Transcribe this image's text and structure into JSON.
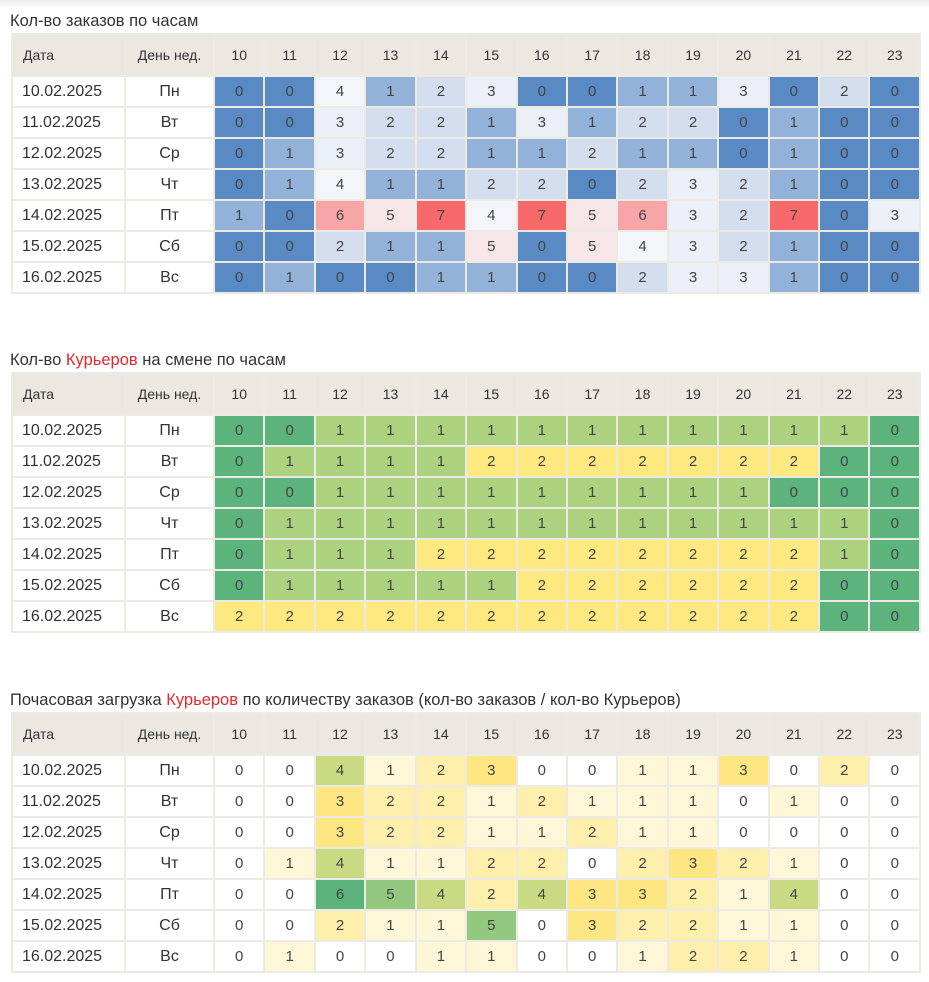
{
  "columns": {
    "date": "Дата",
    "dow": "День нед.",
    "hours": [
      "10",
      "11",
      "12",
      "13",
      "14",
      "15",
      "16",
      "17",
      "18",
      "19",
      "20",
      "21",
      "22",
      "23"
    ]
  },
  "rows": [
    {
      "date": "10.02.2025",
      "dow": "Пн"
    },
    {
      "date": "11.02.2025",
      "dow": "Вт"
    },
    {
      "date": "12.02.2025",
      "dow": "Ср"
    },
    {
      "date": "13.02.2025",
      "dow": "Чт"
    },
    {
      "date": "14.02.2025",
      "dow": "Пт"
    },
    {
      "date": "15.02.2025",
      "dow": "Сб"
    },
    {
      "date": "16.02.2025",
      "dow": "Вс"
    }
  ],
  "tables": [
    {
      "id": "orders",
      "title_parts": [
        {
          "text": "Кол-во заказов по часам",
          "accent": false
        }
      ],
      "palette": "blue-red",
      "values": [
        [
          0,
          0,
          4,
          1,
          2,
          3,
          0,
          0,
          1,
          1,
          3,
          0,
          2,
          0
        ],
        [
          0,
          0,
          3,
          2,
          2,
          1,
          3,
          1,
          2,
          2,
          0,
          1,
          0,
          0
        ],
        [
          0,
          1,
          3,
          2,
          2,
          1,
          1,
          2,
          1,
          1,
          0,
          1,
          0,
          0
        ],
        [
          0,
          1,
          4,
          1,
          1,
          2,
          2,
          0,
          2,
          3,
          2,
          1,
          0,
          0
        ],
        [
          1,
          0,
          6,
          5,
          7,
          4,
          7,
          5,
          6,
          3,
          2,
          7,
          0,
          3
        ],
        [
          0,
          0,
          2,
          1,
          1,
          5,
          0,
          5,
          4,
          3,
          2,
          1,
          0,
          0
        ],
        [
          0,
          1,
          0,
          0,
          1,
          1,
          0,
          0,
          2,
          3,
          3,
          1,
          0,
          0
        ]
      ]
    },
    {
      "id": "couriers",
      "title_parts": [
        {
          "text": "Кол-во ",
          "accent": false
        },
        {
          "text": "Курьеров",
          "accent": true
        },
        {
          "text": " на смене по часам",
          "accent": false
        }
      ],
      "palette": "green-yellow",
      "values": [
        [
          0,
          0,
          1,
          1,
          1,
          1,
          1,
          1,
          1,
          1,
          1,
          1,
          1,
          0
        ],
        [
          0,
          1,
          1,
          1,
          1,
          2,
          2,
          2,
          2,
          2,
          2,
          2,
          0,
          0
        ],
        [
          0,
          0,
          1,
          1,
          1,
          1,
          1,
          1,
          1,
          1,
          1,
          0,
          0,
          0
        ],
        [
          0,
          1,
          1,
          1,
          1,
          1,
          1,
          1,
          1,
          1,
          1,
          1,
          1,
          0
        ],
        [
          0,
          1,
          1,
          1,
          2,
          2,
          2,
          2,
          2,
          2,
          2,
          2,
          1,
          0
        ],
        [
          0,
          1,
          1,
          1,
          1,
          1,
          2,
          2,
          2,
          2,
          2,
          2,
          0,
          0
        ],
        [
          2,
          2,
          2,
          2,
          2,
          2,
          2,
          2,
          2,
          2,
          2,
          2,
          0,
          0
        ]
      ]
    },
    {
      "id": "load",
      "title_parts": [
        {
          "text": "Почасовая загрузка ",
          "accent": false
        },
        {
          "text": "Курьеров",
          "accent": true
        },
        {
          "text": " по количеству заказов (кол-во заказов / кол-во Курьеров)",
          "accent": false
        }
      ],
      "palette": "white-yellow-green",
      "values": [
        [
          0,
          0,
          4,
          1,
          2,
          3,
          0,
          0,
          1,
          1,
          3,
          0,
          2,
          0
        ],
        [
          0,
          0,
          3,
          2,
          2,
          1,
          2,
          1,
          1,
          1,
          0,
          1,
          0,
          0
        ],
        [
          0,
          0,
          3,
          2,
          2,
          1,
          1,
          2,
          1,
          1,
          0,
          0,
          0,
          0
        ],
        [
          0,
          1,
          4,
          1,
          1,
          2,
          2,
          0,
          2,
          3,
          2,
          1,
          0,
          0
        ],
        [
          0,
          0,
          6,
          5,
          4,
          2,
          4,
          3,
          3,
          2,
          1,
          4,
          0,
          0
        ],
        [
          0,
          0,
          2,
          1,
          1,
          5,
          0,
          3,
          2,
          2,
          1,
          1,
          0,
          0
        ],
        [
          0,
          1,
          0,
          0,
          1,
          1,
          0,
          0,
          1,
          2,
          2,
          1,
          0,
          0
        ]
      ]
    }
  ],
  "colors": {
    "accent_text": "#e8262b",
    "blue-red": {
      "0": "#5a8ac4",
      "1": "#93b2da",
      "2": "#d3dded",
      "3": "#ebeff7",
      "4": "#f3f5f8",
      "5": "#f6e6e7",
      "6": "#f7a5a7",
      "7": "#f8696b"
    },
    "green-yellow": {
      "0": "#5cb37b",
      "1": "#acd17f",
      "2": "#fee981"
    },
    "white-yellow-green": {
      "0": "#ffffff",
      "1": "#fef7d7",
      "2": "#fef0ac",
      "3": "#fee782",
      "4": "#c9da82",
      "5": "#93c87e",
      "6": "#5cb37b"
    }
  }
}
